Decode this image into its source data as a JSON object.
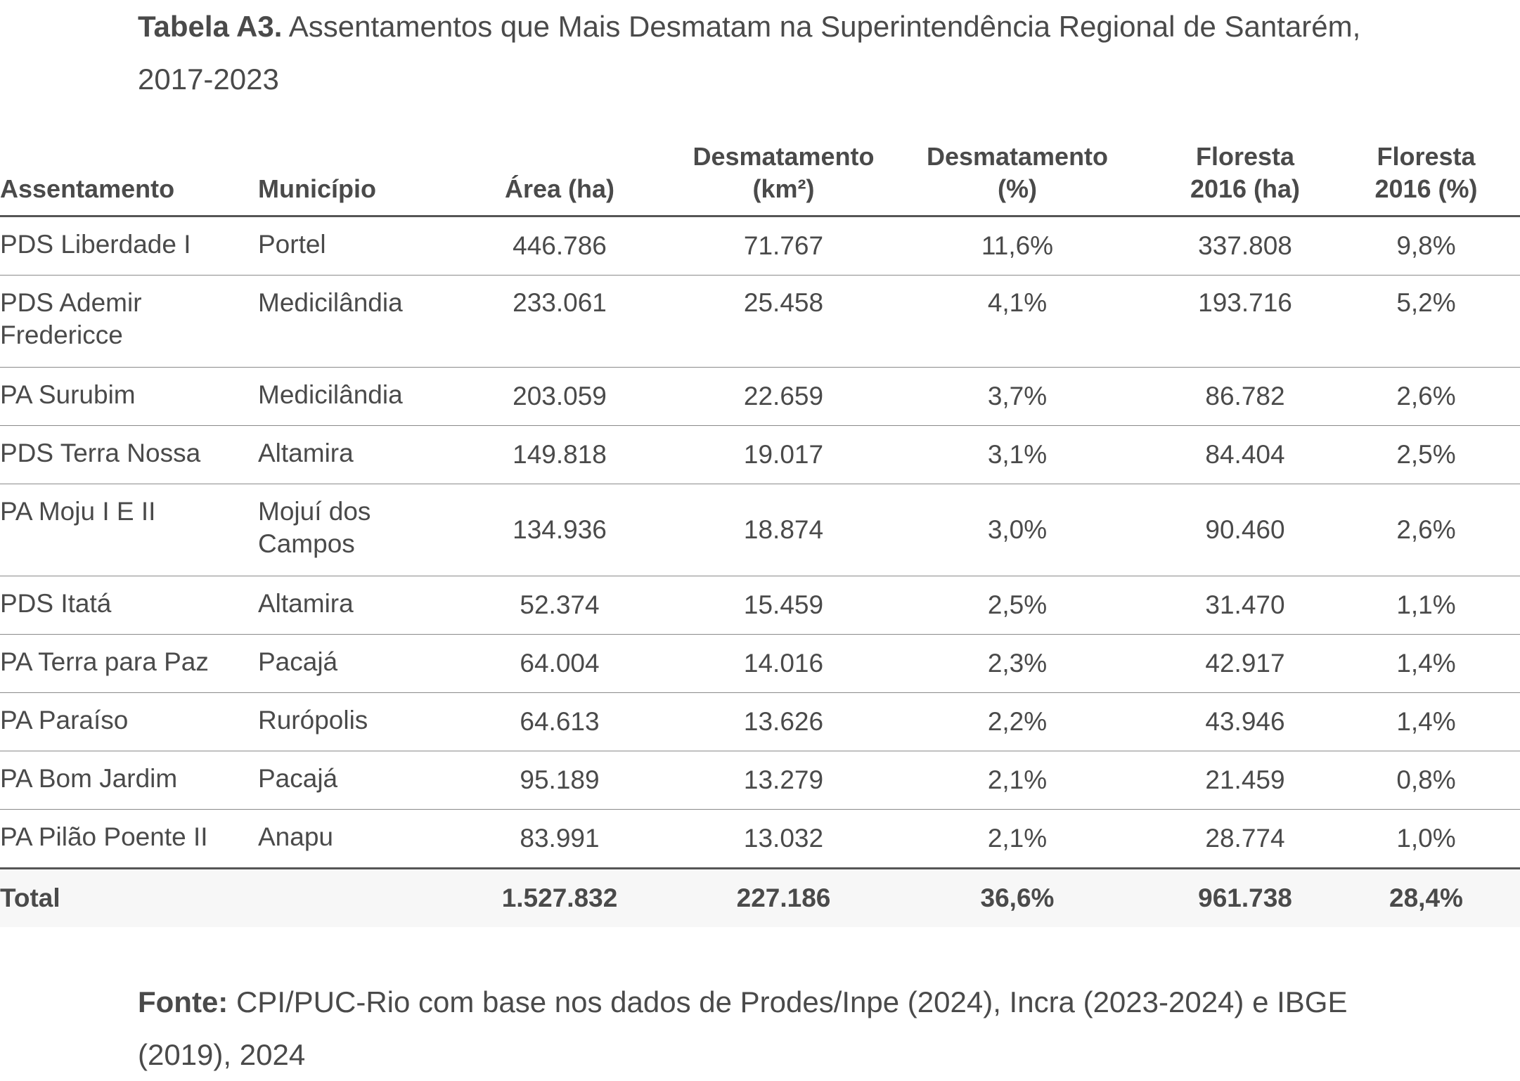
{
  "caption": {
    "label": "Tabela A3.",
    "text": "Assentamentos que Mais Desmatam na Superintendência Regional de Santarém, 2017-2023"
  },
  "table": {
    "headers": {
      "assentamento": "Assentamento",
      "municipio": "Município",
      "area": "Área (ha)",
      "desmatamento_km2": [
        "Desmatamento",
        "(km²)"
      ],
      "desmatamento_pct": [
        "Desmatamento",
        "(%)"
      ],
      "floresta_ha": [
        "Floresta",
        "2016 (ha)"
      ],
      "floresta_pct": [
        "Floresta",
        "2016 (%)"
      ]
    },
    "rows": [
      {
        "assentamento": [
          "PDS Liberdade I"
        ],
        "municipio": [
          "Portel"
        ],
        "area": "446.786",
        "desm_km2": "71.767",
        "desm_pct": "11,6%",
        "flor_ha": "337.808",
        "flor_pct": "9,8%",
        "valign": "top"
      },
      {
        "assentamento": [
          "PDS Ademir",
          "Fredericce"
        ],
        "municipio": [
          "Medicilândia"
        ],
        "area": "233.061",
        "desm_km2": "25.458",
        "desm_pct": "4,1%",
        "flor_ha": "193.716",
        "flor_pct": "5,2%",
        "valign": "top"
      },
      {
        "assentamento": [
          "PA Surubim"
        ],
        "municipio": [
          "Medicilândia"
        ],
        "area": "203.059",
        "desm_km2": "22.659",
        "desm_pct": "3,7%",
        "flor_ha": "86.782",
        "flor_pct": "2,6%",
        "valign": "top"
      },
      {
        "assentamento": [
          "PDS Terra Nossa"
        ],
        "municipio": [
          "Altamira"
        ],
        "area": "149.818",
        "desm_km2": "19.017",
        "desm_pct": "3,1%",
        "flor_ha": "84.404",
        "flor_pct": "2,5%",
        "valign": "top"
      },
      {
        "assentamento": [
          "PA Moju I E II"
        ],
        "municipio": [
          "Mojuí dos",
          "Campos"
        ],
        "area": "134.936",
        "desm_km2": "18.874",
        "desm_pct": "3,0%",
        "flor_ha": "90.460",
        "flor_pct": "2,6%",
        "valign": "middle"
      },
      {
        "assentamento": [
          "PDS Itatá"
        ],
        "municipio": [
          "Altamira"
        ],
        "area": "52.374",
        "desm_km2": "15.459",
        "desm_pct": "2,5%",
        "flor_ha": "31.470",
        "flor_pct": "1,1%",
        "valign": "top"
      },
      {
        "assentamento": [
          "PA Terra para Paz"
        ],
        "municipio": [
          "Pacajá"
        ],
        "area": "64.004",
        "desm_km2": "14.016",
        "desm_pct": "2,3%",
        "flor_ha": "42.917",
        "flor_pct": "1,4%",
        "valign": "top"
      },
      {
        "assentamento": [
          "PA Paraíso"
        ],
        "municipio": [
          "Rurópolis"
        ],
        "area": "64.613",
        "desm_km2": "13.626",
        "desm_pct": "2,2%",
        "flor_ha": "43.946",
        "flor_pct": "1,4%",
        "valign": "top"
      },
      {
        "assentamento": [
          "PA Bom Jardim"
        ],
        "municipio": [
          "Pacajá"
        ],
        "area": "95.189",
        "desm_km2": "13.279",
        "desm_pct": "2,1%",
        "flor_ha": "21.459",
        "flor_pct": "0,8%",
        "valign": "top"
      },
      {
        "assentamento": [
          "PA Pilão Poente II"
        ],
        "municipio": [
          "Anapu"
        ],
        "area": "83.991",
        "desm_km2": "13.032",
        "desm_pct": "2,1%",
        "flor_ha": "28.774",
        "flor_pct": "1,0%",
        "valign": "top"
      }
    ],
    "total": {
      "label": "Total",
      "area": "1.527.832",
      "desm_km2": "227.186",
      "desm_pct": "36,6%",
      "flor_ha": "961.738",
      "flor_pct": "28,4%"
    }
  },
  "source": {
    "label": "Fonte:",
    "text": "CPI/PUC-Rio com base nos dados de Prodes/Inpe (2024), Incra (2023-2024) e IBGE (2019), 2024"
  }
}
